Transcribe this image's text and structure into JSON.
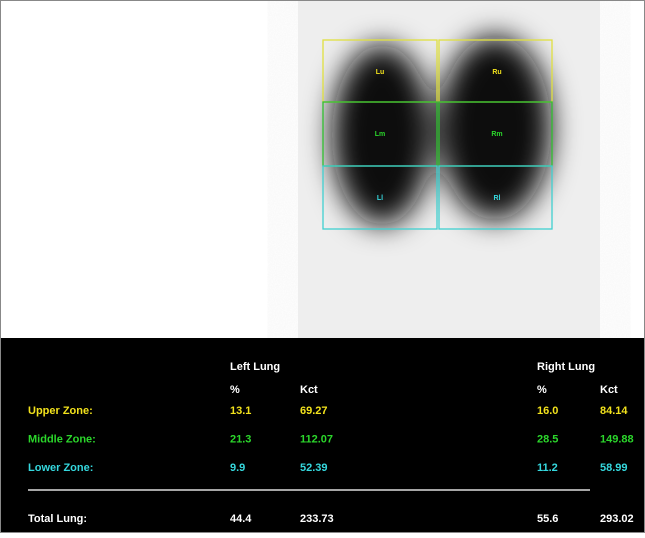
{
  "roi_labels": [
    "Lu",
    "Ru",
    "Lm",
    "Rm",
    "Ll",
    "Rl"
  ],
  "table": {
    "groups": [
      "Left Lung",
      "Right Lung"
    ],
    "columns": [
      "%",
      "Kct",
      "%",
      "Kct"
    ],
    "rows": [
      {
        "label": "Upper Zone:",
        "color": "#f2e21c",
        "values": [
          "13.1",
          "69.27",
          "16.0",
          "84.14"
        ]
      },
      {
        "label": "Middle Zone:",
        "color": "#2bd62b",
        "values": [
          "21.3",
          "112.07",
          "28.5",
          "149.88"
        ]
      },
      {
        "label": "Lower Zone:",
        "color": "#35d8de",
        "values": [
          "9.9",
          "52.39",
          "11.2",
          "58.99"
        ]
      }
    ],
    "total": {
      "label": "Total Lung:",
      "color": "#ffffff",
      "values": [
        "44.4",
        "233.73",
        "55.6",
        "293.02"
      ]
    }
  }
}
